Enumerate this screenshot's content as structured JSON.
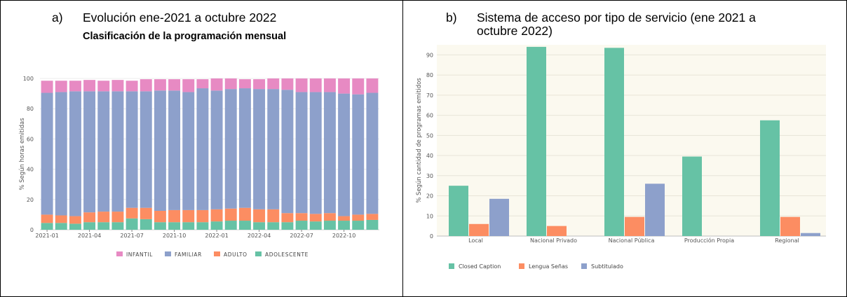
{
  "panel_a": {
    "caption_label": "a)",
    "caption_text": "Evolución ene-2021 a octubre 2022",
    "subtitle": "Clasificación de la programación mensual"
  },
  "panel_b": {
    "caption_label": "b)",
    "caption_line1": "Sistema de acceso por tipo de servicio (ene 2021 a",
    "caption_line2": "octubre 2022)"
  },
  "chart_data": [
    {
      "type": "bar",
      "stacked": true,
      "categories": [
        "2021-01",
        "2021-02",
        "2021-03",
        "2021-04",
        "2021-05",
        "2021-06",
        "2021-07",
        "2021-08",
        "2021-09",
        "2021-10",
        "2021-11",
        "2021-12",
        "2022-01",
        "2022-02",
        "2022-03",
        "2022-04",
        "2022-05",
        "2022-06",
        "2022-07",
        "2022-08",
        "2022-09",
        "2022-10",
        "2022-11",
        "2022-12"
      ],
      "x_tick_labels": [
        "2021-01",
        "2021-04",
        "2021-07",
        "2021-10",
        "2022-01",
        "2022-04",
        "2022-07",
        "2022-10"
      ],
      "series": [
        {
          "name": "ADOLESCENTE",
          "color": "#66c2a5",
          "values": [
            4.5,
            4.5,
            4,
            5,
            5,
            5,
            7.5,
            7,
            5,
            5,
            5,
            5,
            5.5,
            6,
            6,
            5,
            5,
            5,
            6,
            5.5,
            6,
            6,
            6,
            6.5
          ]
        },
        {
          "name": "ADULTO",
          "color": "#fc8d62",
          "values": [
            5.5,
            5,
            5,
            6.5,
            7,
            7,
            7,
            7.5,
            7.5,
            8,
            8,
            8,
            8,
            8,
            8.5,
            8.5,
            8.5,
            6,
            5,
            5,
            5,
            3,
            4,
            4
          ]
        },
        {
          "name": "FAMILIAR",
          "color": "#8da0cb",
          "values": [
            80.5,
            81.5,
            82.5,
            80,
            79.5,
            79.5,
            77,
            77,
            79.5,
            79,
            78,
            80.5,
            78.5,
            79,
            79,
            79.5,
            79.5,
            81.5,
            80,
            80.5,
            80,
            81,
            79.5,
            80
          ]
        },
        {
          "name": "INFANTIL",
          "color": "#e78ac3",
          "values": [
            8,
            7.5,
            7,
            7.5,
            7,
            7.5,
            7,
            8,
            7.5,
            7.5,
            8.5,
            6,
            8,
            7,
            6,
            6.5,
            7,
            7.5,
            9,
            9,
            9,
            10,
            10.5,
            9.5
          ]
        }
      ],
      "legend_order": [
        "INFANTIL",
        "FAMILIAR",
        "ADULTO",
        "ADOLESCENTE"
      ],
      "legend_position": "bottom",
      "ylabel": "% Según horas emitidas",
      "ylim": [
        0,
        100
      ],
      "y_ticks": [
        0,
        20,
        40,
        60,
        80,
        100
      ],
      "grid": true
    },
    {
      "type": "bar",
      "grouped": true,
      "categories": [
        "Local",
        "Nacional Privado",
        "Nacional Pública",
        "Producción Propia",
        "Regional"
      ],
      "series": [
        {
          "name": "Closed Caption",
          "color": "#66c2a5",
          "values": [
            25,
            94,
            93.5,
            39.5,
            57.5
          ]
        },
        {
          "name": "Lengua Señas",
          "color": "#fc8d62",
          "values": [
            6,
            5,
            9.5,
            0,
            9.5
          ]
        },
        {
          "name": "Subtitulado",
          "color": "#8da0cb",
          "values": [
            18.5,
            0,
            26,
            0,
            1.5
          ]
        }
      ],
      "legend_position": "bottom",
      "ylabel": "% Según cantidad de programas emitidos",
      "ylim": [
        0,
        95
      ],
      "y_ticks": [
        0,
        10,
        20,
        30,
        40,
        50,
        60,
        70,
        80,
        90
      ],
      "grid": true,
      "plot_background": "#fbf9ef"
    }
  ]
}
